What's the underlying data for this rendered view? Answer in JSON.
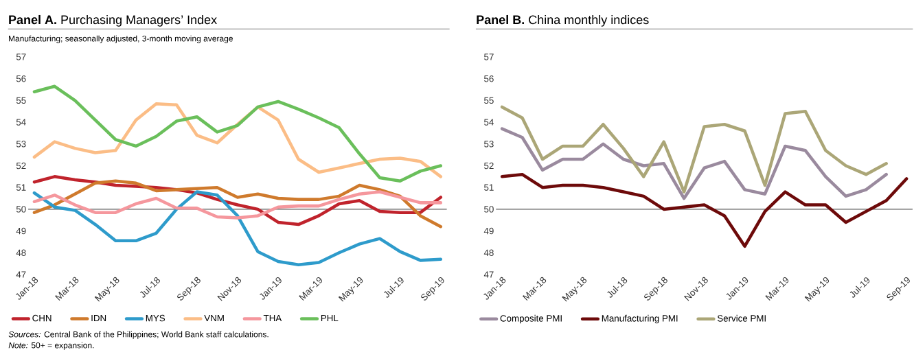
{
  "chart_data": [
    {
      "type": "line",
      "title": "**Panel A.** Purchasing Managers’ Index",
      "subtitle": "Manufacturing; seasonally adjusted, 3-month moving average",
      "categories": [
        "Jan-18",
        null,
        "Mar-18",
        null,
        "May-18",
        null,
        "Jul-18",
        null,
        "Sep-18",
        null,
        "Nov-18",
        null,
        "Jan-19",
        null,
        "Mar-19",
        null,
        "May-19",
        null,
        "Jul-19",
        null,
        "Sep-19"
      ],
      "series": [
        {
          "name": "CHN",
          "color": "#c0232c",
          "values": [
            51.25,
            51.5,
            51.35,
            51.25,
            51.1,
            51.05,
            51.0,
            50.9,
            50.75,
            50.45,
            50.2,
            50.0,
            49.4,
            49.3,
            49.7,
            50.25,
            50.4,
            49.9,
            49.85,
            49.85,
            50.55
          ]
        },
        {
          "name": "IDN",
          "color": "#cf7a2c",
          "values": [
            49.85,
            50.2,
            50.7,
            51.2,
            51.3,
            51.2,
            50.85,
            50.9,
            50.95,
            51.0,
            50.55,
            50.7,
            50.5,
            50.45,
            50.45,
            50.6,
            51.1,
            50.9,
            50.6,
            49.7,
            49.2
          ]
        },
        {
          "name": "MYS",
          "color": "#2e9bcb",
          "values": [
            50.75,
            50.1,
            49.95,
            49.3,
            48.55,
            48.55,
            48.9,
            50.0,
            50.8,
            50.65,
            49.7,
            48.05,
            47.6,
            47.45,
            47.55,
            48.0,
            48.4,
            48.65,
            48.05,
            47.65,
            47.7
          ]
        },
        {
          "name": "VNM",
          "color": "#fbbd86",
          "values": [
            52.4,
            53.1,
            52.8,
            52.6,
            52.7,
            54.1,
            54.85,
            54.8,
            53.4,
            53.05,
            53.9,
            54.7,
            54.1,
            52.3,
            51.7,
            51.9,
            52.1,
            52.3,
            52.35,
            52.2,
            51.5
          ]
        },
        {
          "name": "THA",
          "color": "#f5979d",
          "values": [
            50.35,
            50.65,
            50.2,
            49.85,
            49.85,
            50.25,
            50.5,
            50.05,
            50.05,
            49.65,
            49.6,
            49.7,
            50.1,
            50.15,
            50.15,
            50.45,
            50.7,
            50.8,
            50.55,
            50.3,
            50.3
          ]
        },
        {
          "name": "PHL",
          "color": "#6abf5b",
          "values": [
            55.4,
            55.65,
            55.0,
            54.1,
            53.2,
            52.9,
            53.35,
            54.05,
            54.25,
            53.55,
            53.85,
            54.7,
            54.95,
            54.6,
            54.2,
            53.75,
            52.55,
            51.45,
            51.3,
            51.75,
            52.0
          ]
        }
      ],
      "ylim": [
        47,
        57
      ],
      "yticks": [
        47,
        48,
        49,
        50,
        51,
        52,
        53,
        54,
        55,
        56,
        57
      ],
      "ref_lines": [
        {
          "axis": "y",
          "value": 50,
          "color": "#000000"
        }
      ],
      "legend": "bottom",
      "annotations": [
        "*Sources:* Central Bank of the Philippines; World Bank staff calculations.",
        "*Note:* 50+ = expansion."
      ]
    },
    {
      "type": "line",
      "title": "**Panel B.** China monthly indices",
      "categories": [
        "Jan-18",
        null,
        "Mar-18",
        null,
        "May-18",
        null,
        "Jul-18",
        null,
        "Sep-18",
        null,
        "Nov-18",
        null,
        "Jan-19",
        null,
        "Mar-19",
        null,
        "May-19",
        null,
        "Jul-19",
        null,
        "Sep-19"
      ],
      "series": [
        {
          "name": "Composite PMI",
          "color": "#9a8a9e",
          "values": [
            53.7,
            53.3,
            51.8,
            52.3,
            52.3,
            53.0,
            52.3,
            52.0,
            52.1,
            50.5,
            51.9,
            52.2,
            50.9,
            50.7,
            52.9,
            52.7,
            51.5,
            50.6,
            50.9,
            51.6,
            null
          ]
        },
        {
          "name": "Manufacturing PMI",
          "color": "#6d0a0a",
          "values": [
            51.5,
            51.6,
            51.0,
            51.1,
            51.1,
            51.0,
            50.8,
            50.6,
            50.0,
            50.1,
            50.2,
            49.7,
            48.3,
            49.9,
            50.8,
            50.2,
            50.2,
            49.4,
            49.9,
            50.4,
            51.4
          ]
        },
        {
          "name": "Service PMI",
          "color": "#aba677",
          "values": [
            54.7,
            54.2,
            52.3,
            52.9,
            52.9,
            53.9,
            52.8,
            51.5,
            53.1,
            50.8,
            53.8,
            53.9,
            53.6,
            51.1,
            54.4,
            54.5,
            52.7,
            52.0,
            51.6,
            52.1,
            null
          ]
        }
      ],
      "ylim": [
        47,
        57
      ],
      "yticks": [
        47,
        48,
        49,
        50,
        51,
        52,
        53,
        54,
        55,
        56,
        57
      ],
      "ref_lines": [
        {
          "axis": "y",
          "value": 50,
          "color": "#000000"
        }
      ],
      "legend": "bottom"
    }
  ]
}
